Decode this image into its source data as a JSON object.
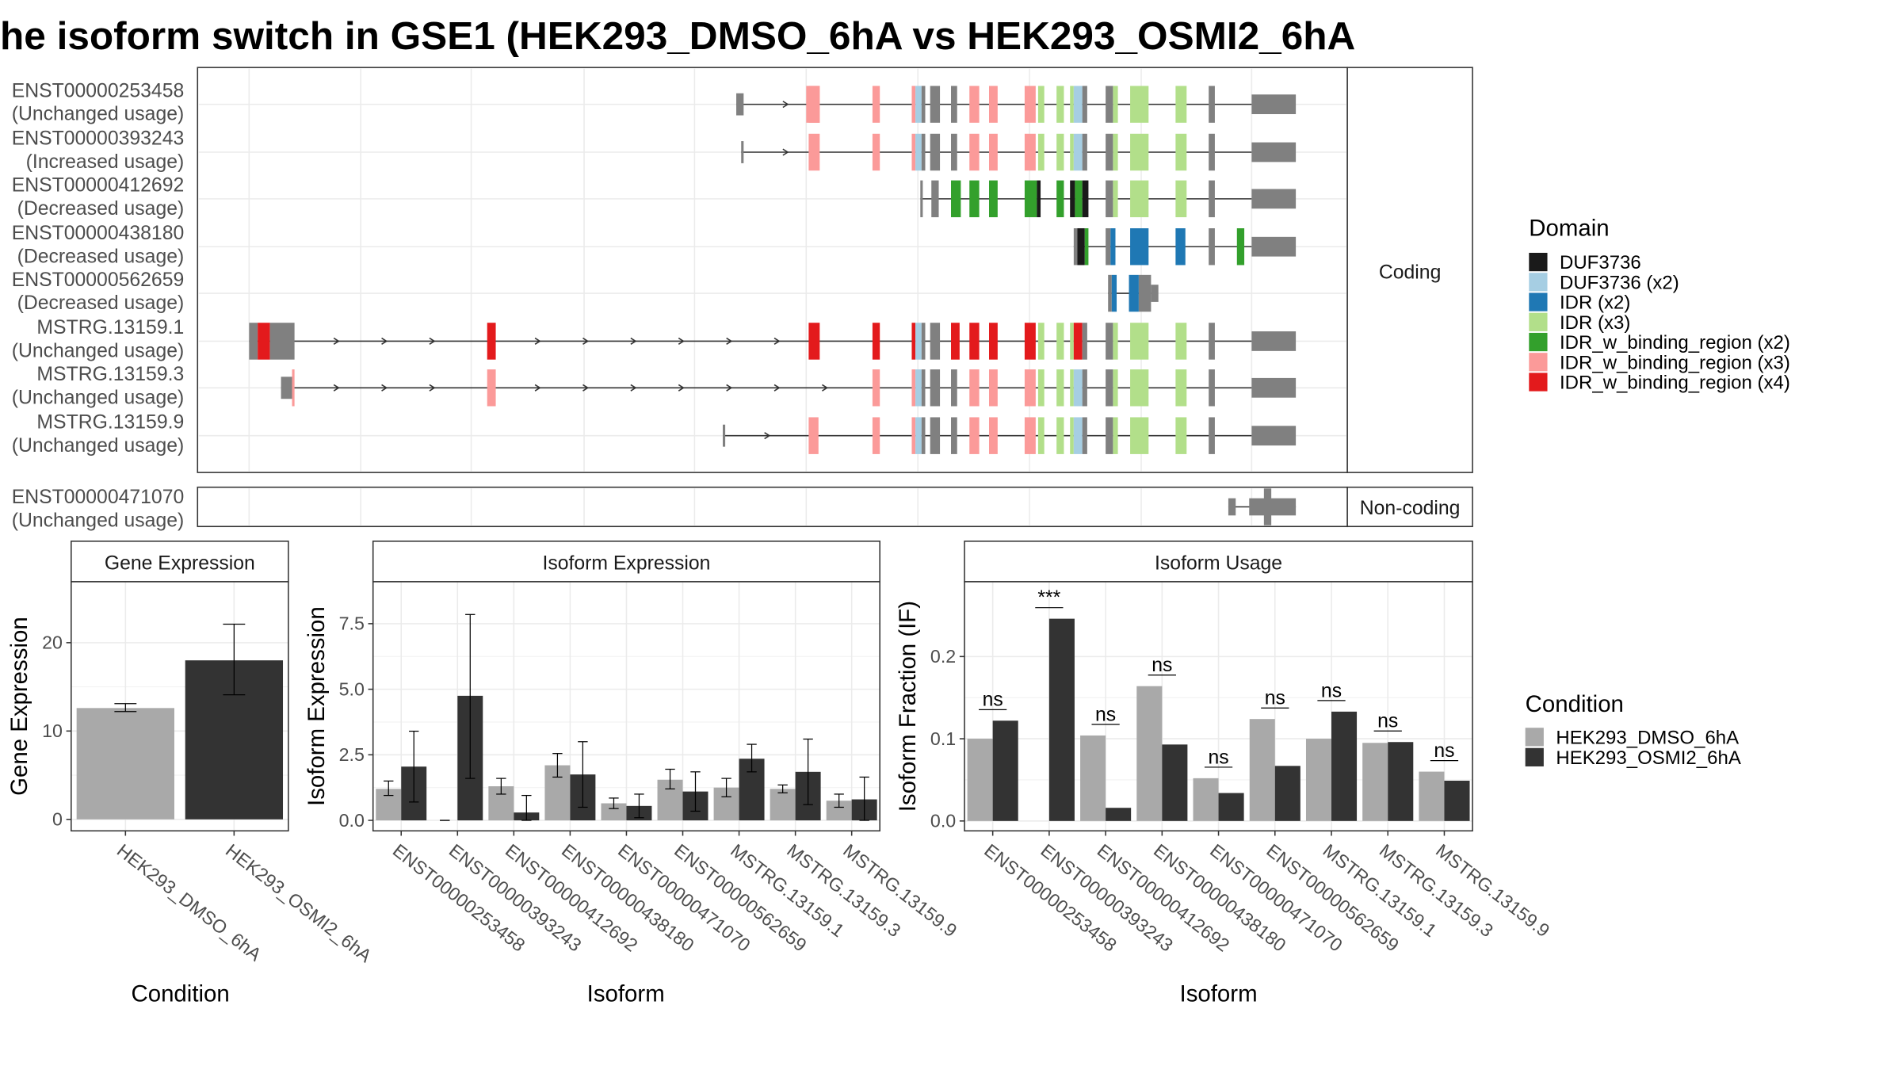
{
  "title": "he isoform switch in GSE1 (HEK293_DMSO_6hA vs HEK293_OSMI2_6hA",
  "colors": {
    "DUF3736": "#1a1a1a",
    "DUF3736 (x2)": "#a6cee3",
    "IDR (x2)": "#1f78b4",
    "IDR (x3)": "#b2df8a",
    "IDR_w_binding_region (x2)": "#33a02c",
    "IDR_w_binding_region (x3)": "#fb9a99",
    "IDR_w_binding_region (x4)": "#e31a1c",
    "exon": "#808080",
    "dmso": "#a9a9a9",
    "osmi": "#333333"
  },
  "structure": {
    "coding_label": "Coding",
    "noncoding_label": "Non-coding",
    "domain_legend": {
      "title": "Domain",
      "items": [
        "DUF3736",
        "DUF3736 (x2)",
        "IDR (x2)",
        "IDR (x3)",
        "IDR_w_binding_region (x2)",
        "IDR_w_binding_region (x3)",
        "IDR_w_binding_region (x4)"
      ]
    },
    "transcripts": [
      {
        "id": "ENST00000253458",
        "usage": "(Unchanged usage)",
        "start": 600,
        "end": 1056,
        "type": "A",
        "utr5_end": 606
      },
      {
        "id": "ENST00000393243",
        "usage": "(Increased usage)",
        "start": 604,
        "end": 1056,
        "type": "A",
        "utr5_end": 606
      },
      {
        "id": "ENST00000412692",
        "usage": "(Decreased usage)",
        "start": 750,
        "end": 1056,
        "type": "B"
      },
      {
        "id": "ENST00000438180",
        "usage": "(Decreased usage)",
        "start": 875,
        "end": 1056,
        "type": "C"
      },
      {
        "id": "ENST00000562659",
        "usage": "(Decreased usage)",
        "start": 903,
        "end": 944,
        "type": "D"
      },
      {
        "id": "MSTRG.13159.1",
        "usage": "(Unchanged usage)",
        "start": 203,
        "end": 1056,
        "type": "E"
      },
      {
        "id": "MSTRG.13159.3",
        "usage": "(Unchanged usage)",
        "start": 229,
        "end": 1056,
        "type": "F"
      },
      {
        "id": "MSTRG.13159.9",
        "usage": "(Unchanged usage)",
        "start": 589,
        "end": 1056,
        "type": "G"
      }
    ],
    "noncoding": {
      "id": "ENST00000471070",
      "usage": "(Unchanged usage)"
    }
  },
  "chart_data": [
    {
      "type": "bar",
      "title": "Gene Expression",
      "xlabel": "Condition",
      "ylabel": "Gene Expression",
      "categories": [
        "HEK293_DMSO_6hA",
        "HEK293_OSMI2_6hA"
      ],
      "values": [
        12.6,
        18.0
      ],
      "error_low": [
        12.2,
        14.1
      ],
      "error_high": [
        13.1,
        22.1
      ],
      "ylim": [
        -1.3,
        26.9
      ],
      "yticks": [
        0,
        10,
        20
      ]
    },
    {
      "type": "bar",
      "title": "Isoform Expression",
      "xlabel": "Isoform",
      "ylabel": "Isoform Expression",
      "categories": [
        "ENST00000253458",
        "ENST00000393243",
        "ENST00000412692",
        "ENST00000438180",
        "ENST00000471070",
        "ENST00000562659",
        "MSTRG.13159.1",
        "MSTRG.13159.3",
        "MSTRG.13159.9"
      ],
      "series": [
        {
          "name": "HEK293_DMSO_6hA",
          "values": [
            1.2,
            0.0,
            1.3,
            2.1,
            0.65,
            1.55,
            1.25,
            1.2,
            0.75
          ],
          "err_low": [
            0.95,
            0.0,
            1.0,
            1.65,
            0.45,
            1.2,
            0.9,
            1.05,
            0.5
          ],
          "err_high": [
            1.5,
            0.0,
            1.6,
            2.55,
            0.85,
            1.95,
            1.6,
            1.35,
            1.0
          ]
        },
        {
          "name": "HEK293_OSMI2_6hA",
          "values": [
            2.05,
            4.75,
            0.3,
            1.75,
            0.55,
            1.1,
            2.35,
            1.85,
            0.8
          ],
          "err_low": [
            0.7,
            1.6,
            0.0,
            0.5,
            0.1,
            0.35,
            1.85,
            0.6,
            0.0
          ],
          "err_high": [
            3.4,
            7.85,
            0.95,
            3.0,
            1.0,
            1.85,
            2.9,
            3.1,
            1.65
          ]
        }
      ],
      "ylim": [
        -0.4,
        9.1
      ],
      "yticks": [
        0.0,
        2.5,
        5.0,
        7.5
      ],
      "ytick_labels": [
        "0.0",
        "2.5",
        "5.0",
        "7.5"
      ]
    },
    {
      "type": "bar",
      "title": "Isoform Usage",
      "xlabel": "Isoform",
      "ylabel": "Isoform Fraction (IF)",
      "categories": [
        "ENST00000253458",
        "ENST00000393243",
        "ENST00000412692",
        "ENST00000438180",
        "ENST00000471070",
        "ENST00000562659",
        "MSTRG.13159.1",
        "MSTRG.13159.3",
        "MSTRG.13159.9"
      ],
      "series": [
        {
          "name": "HEK293_DMSO_6hA",
          "values": [
            0.1,
            0.0,
            0.104,
            0.164,
            0.052,
            0.124,
            0.1,
            0.095,
            0.06
          ]
        },
        {
          "name": "HEK293_OSMI2_6hA",
          "values": [
            0.122,
            0.246,
            0.016,
            0.093,
            0.034,
            0.067,
            0.133,
            0.096,
            0.049
          ]
        }
      ],
      "significance": [
        "ns",
        "***",
        "ns",
        "ns",
        "ns",
        "ns",
        "ns",
        "ns",
        "ns"
      ],
      "ylim": [
        -0.012,
        0.291
      ],
      "yticks": [
        0.0,
        0.1,
        0.2
      ],
      "ytick_labels": [
        "0.0",
        "0.1",
        "0.2"
      ]
    }
  ],
  "condition_legend": {
    "title": "Condition",
    "items": [
      "HEK293_DMSO_6hA",
      "HEK293_OSMI2_6hA"
    ]
  }
}
